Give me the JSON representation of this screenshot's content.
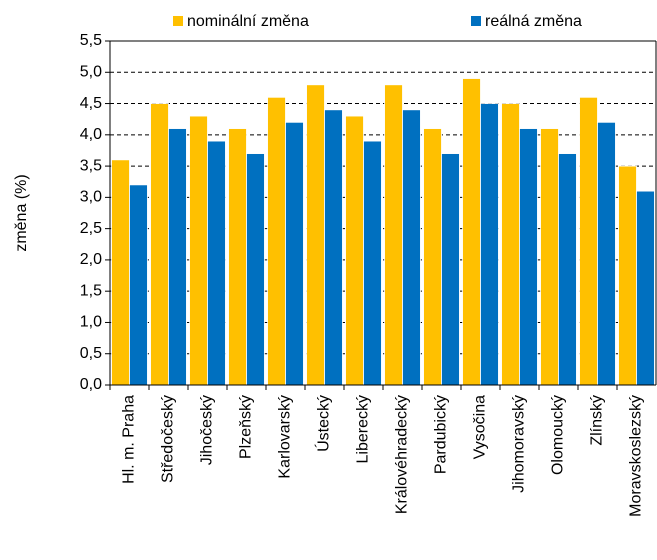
{
  "chart_data": {
    "type": "bar",
    "y_label": "změna (%)",
    "categories": [
      "Hl. m. Praha",
      "Středočeský",
      "Jihočeský",
      "Plzeňský",
      "Karlovarský",
      "Ústecký",
      "Liberecký",
      "Královéhradecký",
      "Pardubický",
      "Vysočina",
      "Jihomoravský",
      "Olomoucký",
      "Zlínský",
      "Moravskoslezský"
    ],
    "series": [
      {
        "name": "nominální změna",
        "color": "#ffc000",
        "values": [
          3.6,
          4.5,
          4.3,
          4.1,
          4.6,
          4.8,
          4.3,
          4.8,
          4.1,
          4.9,
          4.5,
          4.1,
          4.6,
          3.5
        ]
      },
      {
        "name": "reálná změna",
        "color": "#0070c0",
        "values": [
          3.2,
          4.1,
          3.9,
          3.7,
          4.2,
          4.4,
          3.9,
          4.4,
          3.7,
          4.5,
          4.1,
          3.7,
          4.2,
          3.1
        ]
      }
    ],
    "ylim": [
      0,
      5.5
    ],
    "yticks": [
      {
        "value": 0,
        "label": "0,0"
      },
      {
        "value": 0.5,
        "label": "0,5"
      },
      {
        "value": 1,
        "label": "1,0"
      },
      {
        "value": 1.5,
        "label": "1,5"
      },
      {
        "value": 2,
        "label": "2,0"
      },
      {
        "value": 2.5,
        "label": "2,5"
      },
      {
        "value": 3,
        "label": "3,0"
      },
      {
        "value": 3.5,
        "label": "3,5"
      },
      {
        "value": 4,
        "label": "4,0"
      },
      {
        "value": 4.5,
        "label": "4,5"
      },
      {
        "value": 5,
        "label": "5,0"
      },
      {
        "value": 5.5,
        "label": "5,5"
      }
    ],
    "grid": true,
    "legend": "top"
  }
}
